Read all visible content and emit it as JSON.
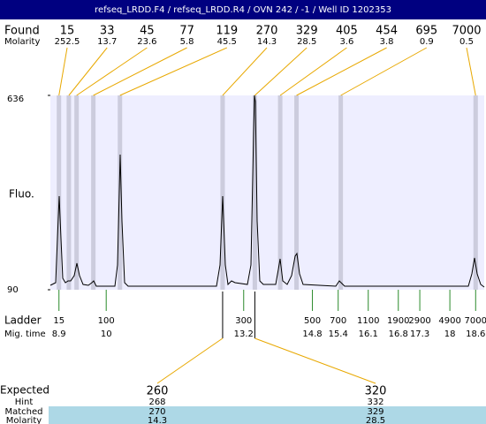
{
  "chart_data": {
    "type": "electropherogram",
    "title": "refseq_LRDD.F4 / refseq_LRDD.R4 / OVN 242 / -1 / Well ID 1202353",
    "found_label": "Found",
    "molarity_label": "Molarity",
    "peaks": [
      {
        "size": 15,
        "molarity": 252.5,
        "time": 8.9
      },
      {
        "size": 33,
        "molarity": 13.7,
        "time": 9.13
      },
      {
        "size": 45,
        "molarity": 23.6,
        "time": 9.31
      },
      {
        "size": 77,
        "molarity": 5.8,
        "time": 9.7
      },
      {
        "size": 119,
        "molarity": 45.5,
        "time": 10.32
      },
      {
        "size": 270,
        "molarity": 14.3,
        "time": 12.71
      },
      {
        "size": 329,
        "molarity": 28.5,
        "time": 13.46
      },
      {
        "size": 405,
        "molarity": 3.6,
        "time": 14.05
      },
      {
        "size": 454,
        "molarity": 3.8,
        "time": 14.43
      },
      {
        "size": 695,
        "molarity": 0.9,
        "time": 15.46
      },
      {
        "size": 7000,
        "molarity": 0.5,
        "time": 18.6
      }
    ],
    "ylabel": "Fluo.",
    "ylim": [
      90,
      636
    ],
    "yticks": [
      90,
      636
    ],
    "xlim": [
      8.7,
      18.8
    ],
    "ladder_label": "Ladder",
    "migtime_label": "Mig. time",
    "ladder": [
      {
        "size": 15,
        "time": 8.9
      },
      {
        "size": 100,
        "time": 10
      },
      {
        "size": 300,
        "time": 13.2
      },
      {
        "size": 500,
        "time": 14.8
      },
      {
        "size": 700,
        "time": 15.4
      },
      {
        "size": 1100,
        "time": 16.1
      },
      {
        "size": 1900,
        "time": 16.8
      },
      {
        "size": 2900,
        "time": 17.3
      },
      {
        "size": 4900,
        "time": 18
      },
      {
        "size": 7000,
        "time": 18.6
      }
    ],
    "expected": {
      "label": "Expected",
      "hint_label": "Hint",
      "matched_label": "Matched",
      "molarity_label": "Molarity",
      "columns": [
        {
          "expected": 260,
          "hint": 268,
          "matched": 270,
          "molarity": 14.3
        },
        {
          "expected": 320,
          "hint": 332,
          "matched": 329,
          "molarity": 28.5
        }
      ]
    }
  }
}
